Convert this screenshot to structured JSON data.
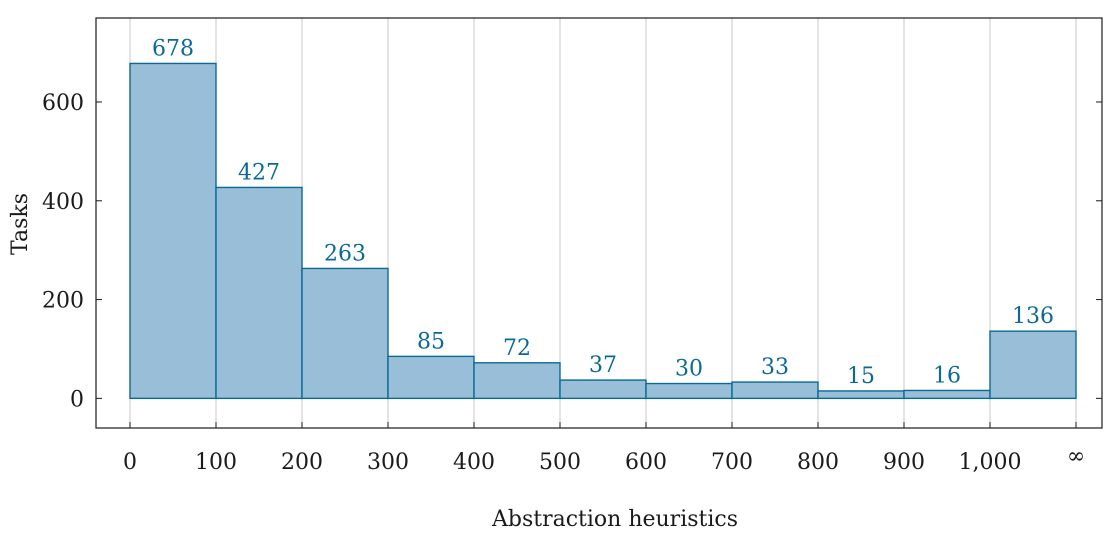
{
  "chart_data": {
    "type": "bar",
    "title": "",
    "xlabel": "Abstraction heuristics",
    "ylabel": "Tasks",
    "x_ticks": [
      "0",
      "100",
      "200",
      "300",
      "400",
      "500",
      "600",
      "700",
      "800",
      "900",
      "1,000",
      "∞"
    ],
    "y_ticks": [
      0,
      200,
      400,
      600
    ],
    "ylim": [
      -60,
      770
    ],
    "bins": [
      {
        "from": "0",
        "to": "100",
        "value": 678
      },
      {
        "from": "100",
        "to": "200",
        "value": 427
      },
      {
        "from": "200",
        "to": "300",
        "value": 263
      },
      {
        "from": "300",
        "to": "400",
        "value": 85
      },
      {
        "from": "400",
        "to": "500",
        "value": 72
      },
      {
        "from": "500",
        "to": "600",
        "value": 37
      },
      {
        "from": "600",
        "to": "700",
        "value": 30
      },
      {
        "from": "700",
        "to": "800",
        "value": 33
      },
      {
        "from": "800",
        "to": "900",
        "value": 15
      },
      {
        "from": "900",
        "to": "1,000",
        "value": 16
      },
      {
        "from": "1,000",
        "to": "∞",
        "value": 136
      }
    ],
    "grid": "vertical",
    "legend": "none",
    "colors": {
      "bar_fill": "#99bfd8",
      "bar_stroke": "#0a6a95",
      "label": "#0a6a95",
      "grid": "#c8c8c8"
    }
  }
}
